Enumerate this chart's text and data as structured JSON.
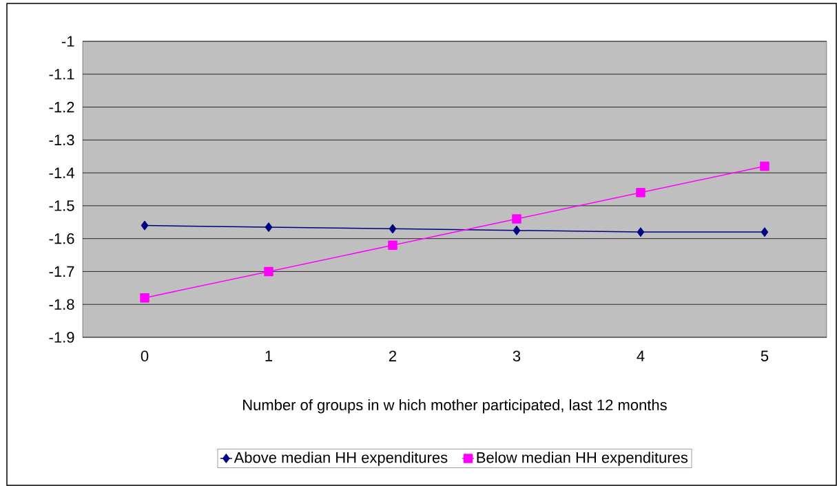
{
  "chart_data": {
    "type": "line",
    "xlabel": "Number of groups in w hich mother participated, last 12 months",
    "categories": [
      "0",
      "1",
      "2",
      "3",
      "4",
      "5"
    ],
    "series": [
      {
        "name": "Above median HH expenditures",
        "color": "#000080",
        "marker": "diamond",
        "values": [
          -1.56,
          -1.565,
          -1.57,
          -1.575,
          -1.58,
          -1.58
        ]
      },
      {
        "name": "Below median HH expenditures",
        "color": "#ff00ff",
        "marker": "square",
        "values": [
          -1.78,
          -1.7,
          -1.62,
          -1.54,
          -1.46,
          -1.38
        ]
      }
    ],
    "ylim": [
      -1.9,
      -1
    ],
    "yticks": [
      -1.9,
      -1.8,
      -1.7,
      -1.6,
      -1.5,
      -1.4,
      -1.3,
      -1.2,
      -1.1,
      -1
    ],
    "grid": "y",
    "legend": "bottom",
    "line_style": "solid"
  }
}
